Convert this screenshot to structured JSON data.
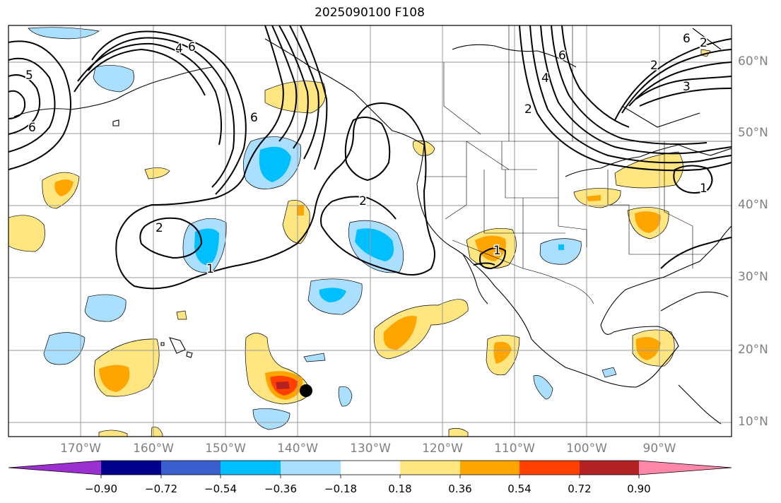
{
  "title": "2025090100 F108",
  "lat_labels": [
    "60°N",
    "50°N",
    "40°N",
    "30°N",
    "20°N",
    "10°N"
  ],
  "lon_labels": [
    "170°W",
    "160°W",
    "150°W",
    "140°W",
    "130°W",
    "120°W",
    "110°W",
    "100°W",
    "90°W"
  ],
  "contour_labels": [
    "5",
    "6",
    "4",
    "6",
    "6",
    "2",
    "2",
    "1",
    "2",
    "2",
    "4",
    "6",
    "3",
    "2",
    "6",
    "1",
    "1"
  ],
  "colorbar": {
    "ticks": [
      "−0.90",
      "−0.72",
      "−0.54",
      "−0.36",
      "−0.18",
      "0.18",
      "0.36",
      "0.54",
      "0.72",
      "0.90"
    ],
    "colors": [
      "#9b30d0",
      "#00008b",
      "#3a5fcd",
      "#00bfff",
      "#aadfff",
      "#ffffff",
      "#ffe680",
      "#ffa500",
      "#ff4000",
      "#b22222",
      "#ff88aa"
    ]
  },
  "palette": {
    "light_blue": "#aadfff",
    "blue": "#00bfff",
    "light_yellow": "#ffe680",
    "orange": "#ffa500",
    "red_orange": "#ff4000",
    "dark_red": "#b22222"
  }
}
